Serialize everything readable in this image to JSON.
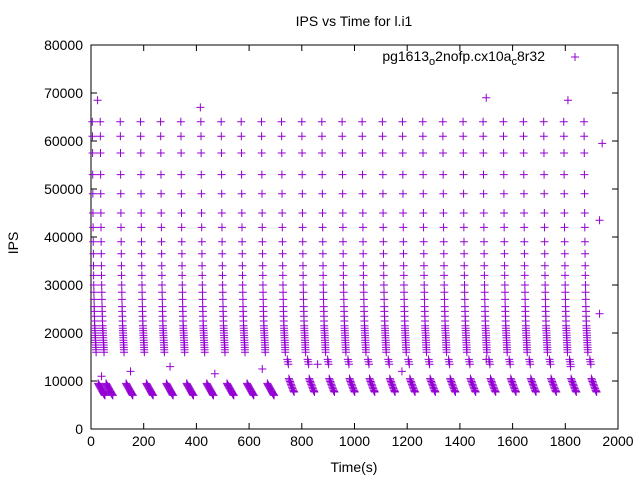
{
  "chart_data": {
    "type": "scatter",
    "title": "IPS vs Time for l.i1",
    "xlabel": "Time(s)",
    "ylabel": "IPS",
    "xlim": [
      0,
      2000
    ],
    "ylim": [
      0,
      80000
    ],
    "xticks": [
      0,
      200,
      400,
      600,
      800,
      1000,
      1200,
      1400,
      1600,
      1800,
      2000
    ],
    "yticks": [
      0,
      10000,
      20000,
      30000,
      40000,
      50000,
      60000,
      70000,
      80000
    ],
    "grid": false,
    "legend": {
      "placement": "top-right",
      "label_parts": [
        "pg1613",
        "o",
        "2nofp.cx10a",
        "c",
        "8r32"
      ],
      "marker": "+"
    },
    "series_color": "#9400d3",
    "series": [
      {
        "name": "pg1613_o2nofp.cx10a_c8r32",
        "cycle_starts": [
          5,
          35,
          111,
          188,
          264,
          341,
          417,
          494,
          570,
          647,
          723,
          800,
          876,
          953,
          1029,
          1106,
          1182,
          1259,
          1335,
          1412,
          1488,
          1565,
          1641,
          1718,
          1794,
          1871
        ],
        "column_ips": [
          64000,
          61000,
          57500,
          53000,
          49000,
          45000,
          42000,
          39000,
          36500,
          34000,
          32000,
          30000,
          28500,
          27000,
          25500,
          24500,
          23500,
          22500,
          21500,
          21000,
          20500,
          20000,
          19500,
          19000,
          18500,
          18000,
          17500,
          17000,
          16500,
          16000
        ],
        "column_dt": [
          0,
          0.5,
          1,
          1.5,
          2,
          2.5,
          3,
          3.5,
          4,
          4.5,
          5,
          5.5,
          6,
          6.5,
          7,
          7.5,
          8,
          8.5,
          9,
          9.5,
          10,
          10.5,
          11,
          11.5,
          12,
          12.5,
          13,
          13.5,
          14,
          14.5
        ],
        "low_ips_early": [
          9500,
          9300,
          9100,
          8900,
          8700,
          8500,
          8300,
          8100,
          7900,
          7700,
          7500,
          7300,
          7100,
          7000
        ],
        "low_ips_late": [
          14500,
          14000,
          13500,
          10500,
          10200,
          9900,
          9600,
          9300,
          9000,
          8700,
          8400,
          8100,
          7900,
          7700
        ],
        "low_dt": [
          22,
          24,
          26,
          28,
          30,
          32,
          34,
          36,
          38,
          40,
          42,
          44,
          46,
          48
        ],
        "late_from": 700,
        "extra": [
          [
            40,
            11000
          ],
          [
            150,
            12000
          ],
          [
            300,
            13000
          ],
          [
            470,
            11500
          ],
          [
            650,
            12500
          ],
          [
            860,
            13500
          ],
          [
            1180,
            12000
          ],
          [
            1500,
            14500
          ],
          [
            1820,
            13000
          ],
          [
            1930,
            24000
          ],
          [
            1930,
            43500
          ],
          [
            1940,
            59500
          ],
          [
            25,
            68500
          ],
          [
            415,
            67000
          ],
          [
            1500,
            69000
          ],
          [
            1810,
            68500
          ]
        ]
      }
    ]
  }
}
